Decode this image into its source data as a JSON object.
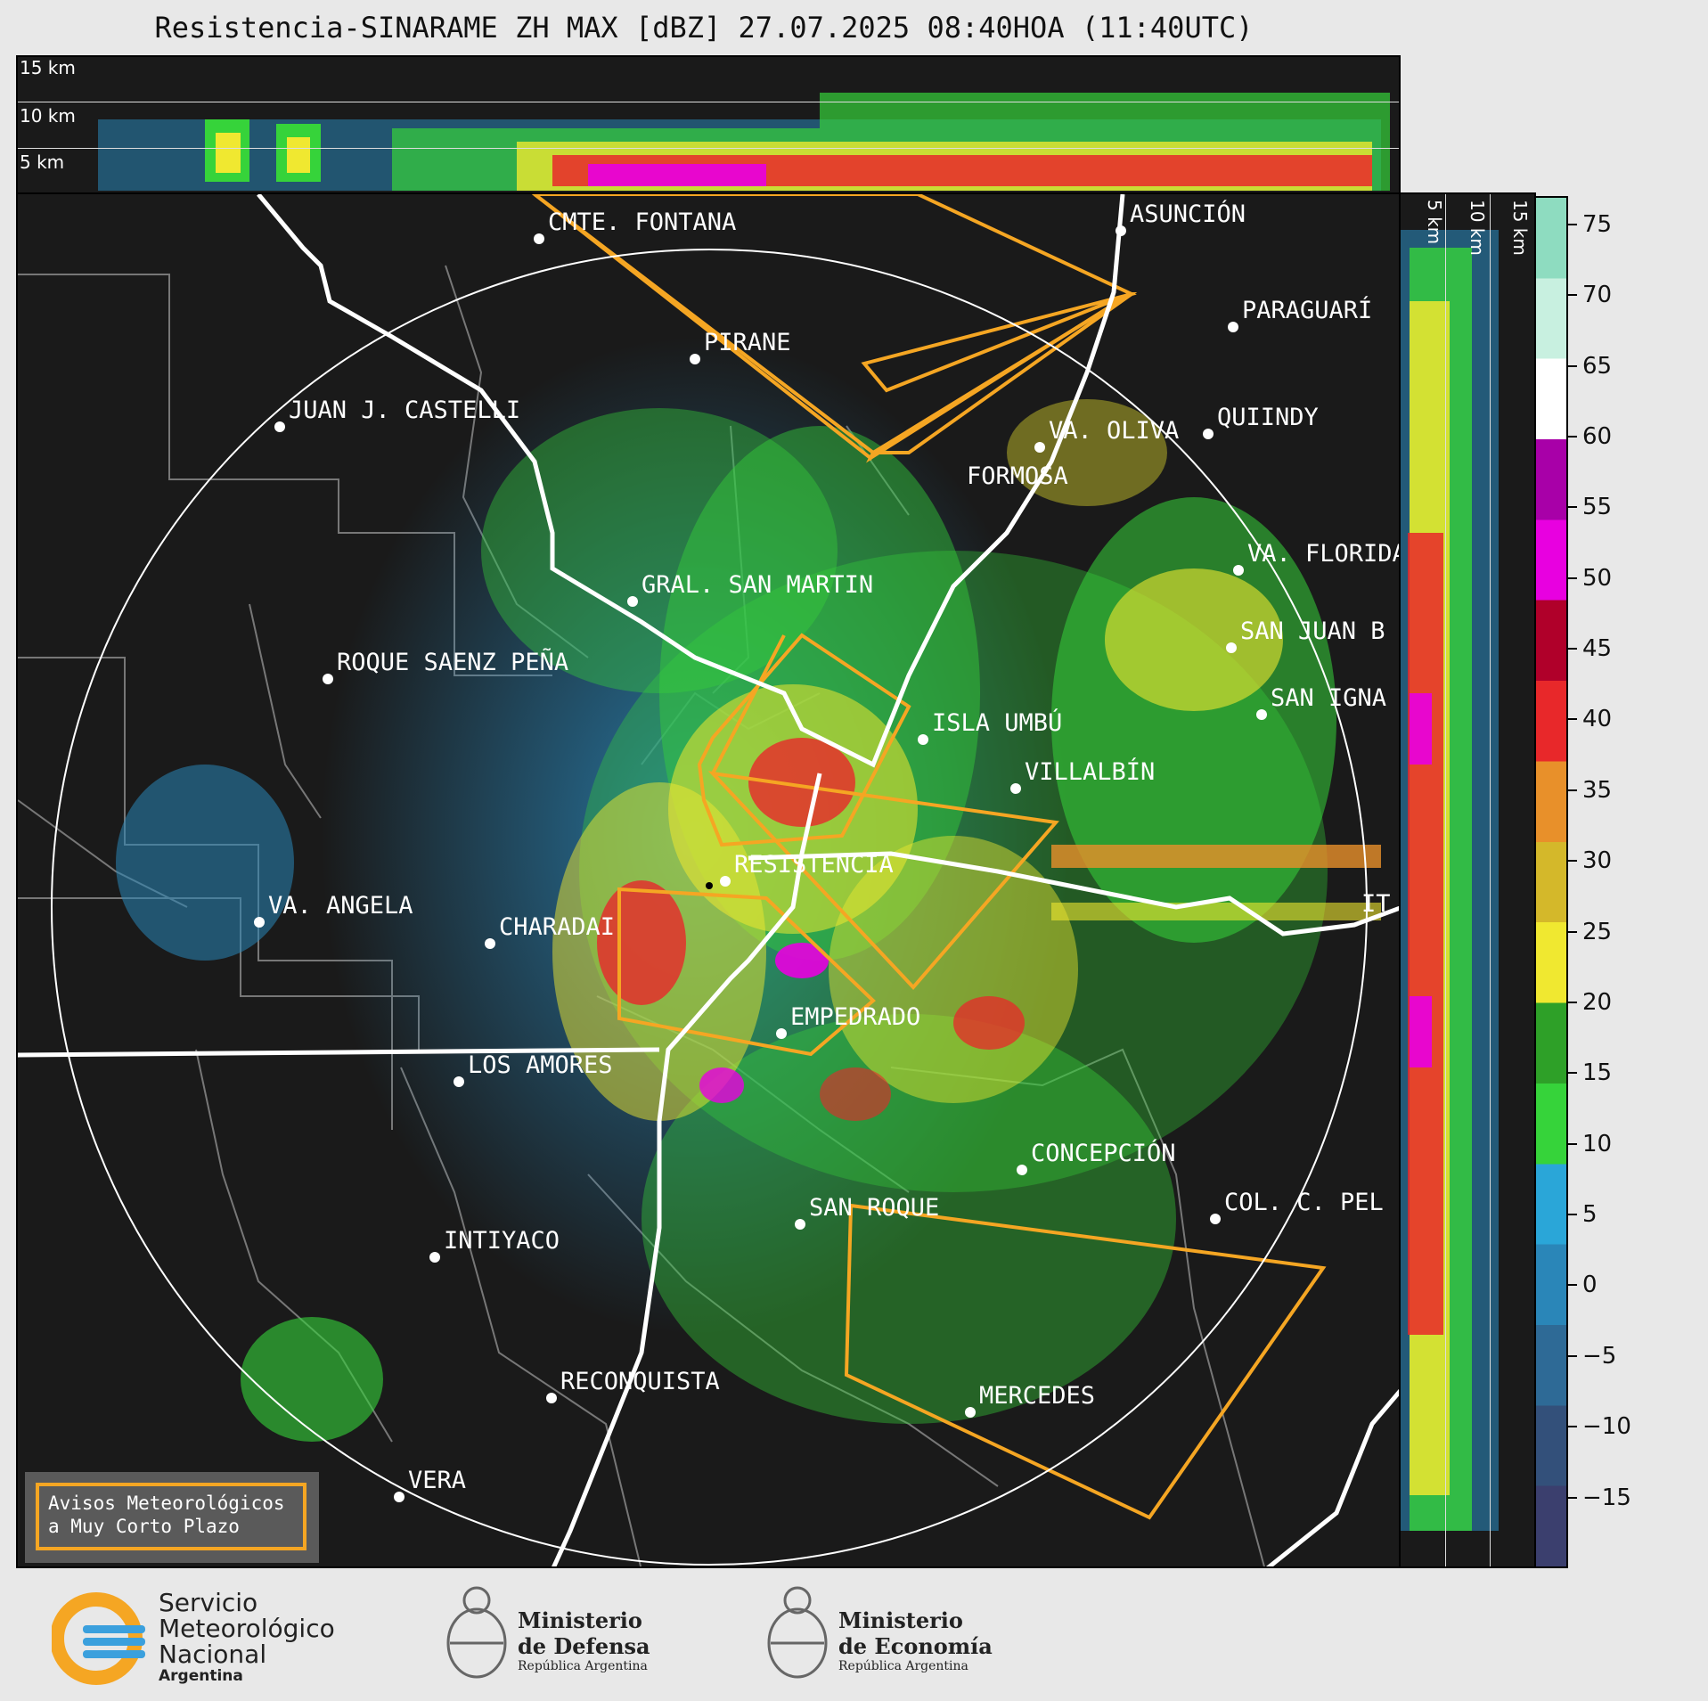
{
  "title": "Resistencia-SINARAME ZH MAX [dBZ] 27.07.2025 08:40HOA (11:40UTC)",
  "top_panel": {
    "labels": [
      "15 km",
      "10 km",
      "5 km"
    ]
  },
  "side_panel": {
    "labels": [
      "5 km",
      "10 km",
      "15 km"
    ]
  },
  "cities": [
    {
      "name": "CMTE. FONTANA"
    },
    {
      "name": "ASUNCIÓN"
    },
    {
      "name": "PARAGUARÍ"
    },
    {
      "name": "PIRANE"
    },
    {
      "name": "JUAN J. CASTELLI"
    },
    {
      "name": "VA. OLIVA"
    },
    {
      "name": "QUIINDY"
    },
    {
      "name": "FORMOSA"
    },
    {
      "name": "VA. FLORIDA"
    },
    {
      "name": "GRAL. SAN MARTIN"
    },
    {
      "name": "SAN JUAN B"
    },
    {
      "name": "ROQUE SAENZ PEÑA"
    },
    {
      "name": "SAN IGNA"
    },
    {
      "name": "ISLA UMBÚ"
    },
    {
      "name": "VILLALBÍN"
    },
    {
      "name": "RESISTENCIA"
    },
    {
      "name": "VA. ANGELA"
    },
    {
      "name": "CHARADAI"
    },
    {
      "name": "EMPEDRADO"
    },
    {
      "name": "LOS AMORES"
    },
    {
      "name": "CONCEPCIÓN"
    },
    {
      "name": "SAN ROQUE"
    },
    {
      "name": "COL. C. PEL"
    },
    {
      "name": "INTIYACO"
    },
    {
      "name": "RECONQUISTA"
    },
    {
      "name": "MERCEDES"
    },
    {
      "name": "VERA"
    },
    {
      "name": "IT"
    }
  ],
  "colorbar": {
    "unit": "dBZ",
    "ticks": [
      "75",
      "70",
      "65",
      "60",
      "55",
      "50",
      "45",
      "40",
      "35",
      "30",
      "25",
      "20",
      "15",
      "10",
      "5",
      "0",
      "−5",
      "−10",
      "−15"
    ],
    "range": [
      -20,
      77
    ],
    "colors": [
      "#3b3f6e",
      "#33507a",
      "#2e6a96",
      "#2a86b8",
      "#2aa6d8",
      "#36d33a",
      "#2ea028",
      "#f0e830",
      "#d4b82a",
      "#e8902a",
      "#e8282a",
      "#b0002a",
      "#e800e0",
      "#a800a8",
      "#ffffff",
      "#c8f0e0",
      "#8edcc0"
    ]
  },
  "warning_box": {
    "line1": "Avisos Meteorológicos",
    "line2": "a Muy Corto Plazo"
  },
  "logos": {
    "smn": {
      "line1": "Servicio",
      "line2": "Meteorológico",
      "line3": "Nacional",
      "line4": "Argentina"
    },
    "defensa": {
      "line1": "Ministerio",
      "line2": "de Defensa",
      "line3": "República Argentina"
    },
    "economia": {
      "line1": "Ministerio",
      "line2": "de Economía",
      "line3": "República Argentina"
    }
  }
}
